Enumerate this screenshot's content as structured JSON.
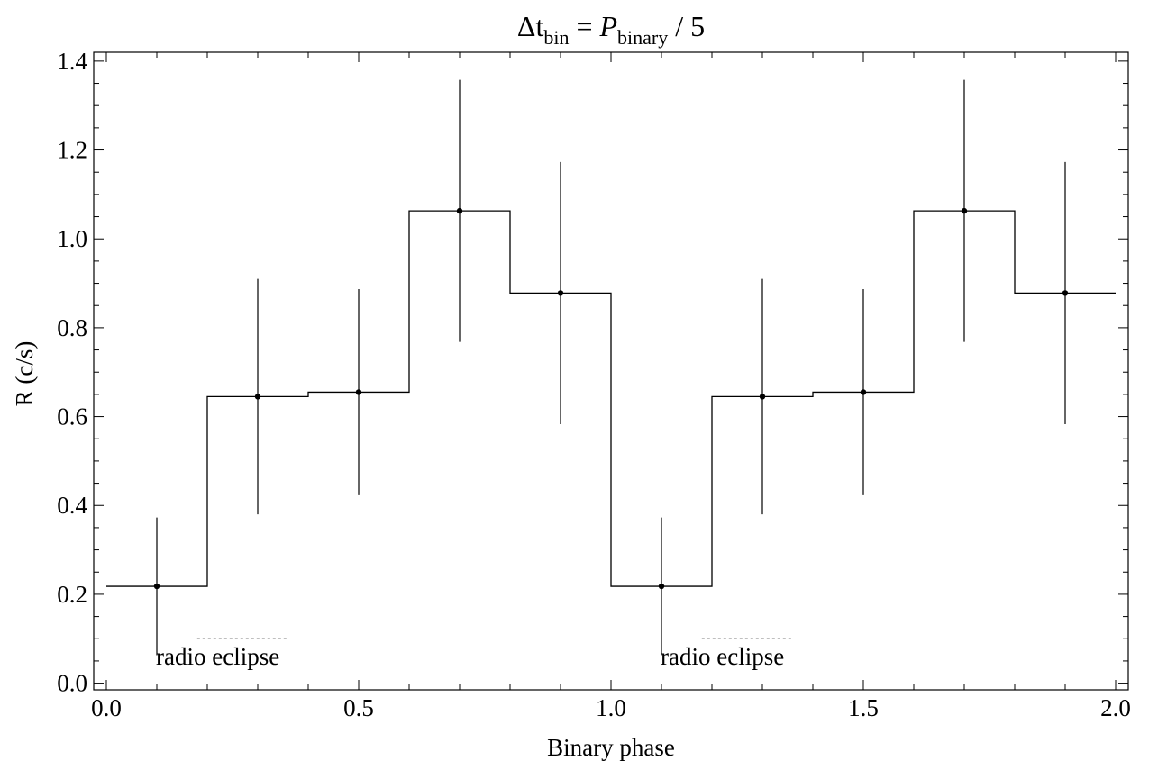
{
  "chart_data": {
    "type": "line",
    "title": {
      "delta": "Δt",
      "delta_sub": "bin",
      "eq": " = ",
      "p": "P",
      "p_sub": "binary",
      "rest": " / 5"
    },
    "xlabel": "Binary phase",
    "ylabel": "R (c/s)",
    "xlim": [
      -0.025,
      2.025
    ],
    "ylim": [
      -0.015,
      1.42
    ],
    "x_ticks": [
      0.0,
      0.5,
      1.0,
      1.5,
      2.0
    ],
    "x_tick_labels": [
      "0.0",
      "0.5",
      "1.0",
      "1.5",
      "2.0"
    ],
    "y_ticks": [
      0.0,
      0.2,
      0.4,
      0.6,
      0.8,
      1.0,
      1.2,
      1.4
    ],
    "y_tick_labels": [
      "0.0",
      "0.2",
      "0.4",
      "0.6",
      "0.8",
      "1.0",
      "1.2",
      "1.4"
    ],
    "grid": false,
    "series": [
      {
        "x": [
          0.1,
          0.3,
          0.5,
          0.7,
          0.9,
          1.1,
          1.3,
          1.5,
          1.7,
          1.9
        ],
        "y": [
          0.218,
          0.645,
          0.655,
          1.063,
          0.878,
          0.218,
          0.645,
          0.655,
          1.063,
          0.878
        ],
        "yerr_low": [
          0.155,
          0.265,
          0.232,
          0.295,
          0.295,
          0.155,
          0.265,
          0.232,
          0.295,
          0.295
        ],
        "yerr_high": [
          0.155,
          0.265,
          0.232,
          0.295,
          0.295,
          0.155,
          0.265,
          0.232,
          0.295,
          0.295
        ],
        "bin_width": 0.2
      }
    ],
    "annotations": [
      {
        "text": "radio eclipse",
        "x": 0.1,
        "y": 0.06,
        "line_x": [
          0.18,
          0.36
        ],
        "line_y": 0.1
      },
      {
        "text": "radio eclipse",
        "x": 1.1,
        "y": 0.06,
        "line_x": [
          1.18,
          1.36
        ],
        "line_y": 0.1
      }
    ]
  }
}
